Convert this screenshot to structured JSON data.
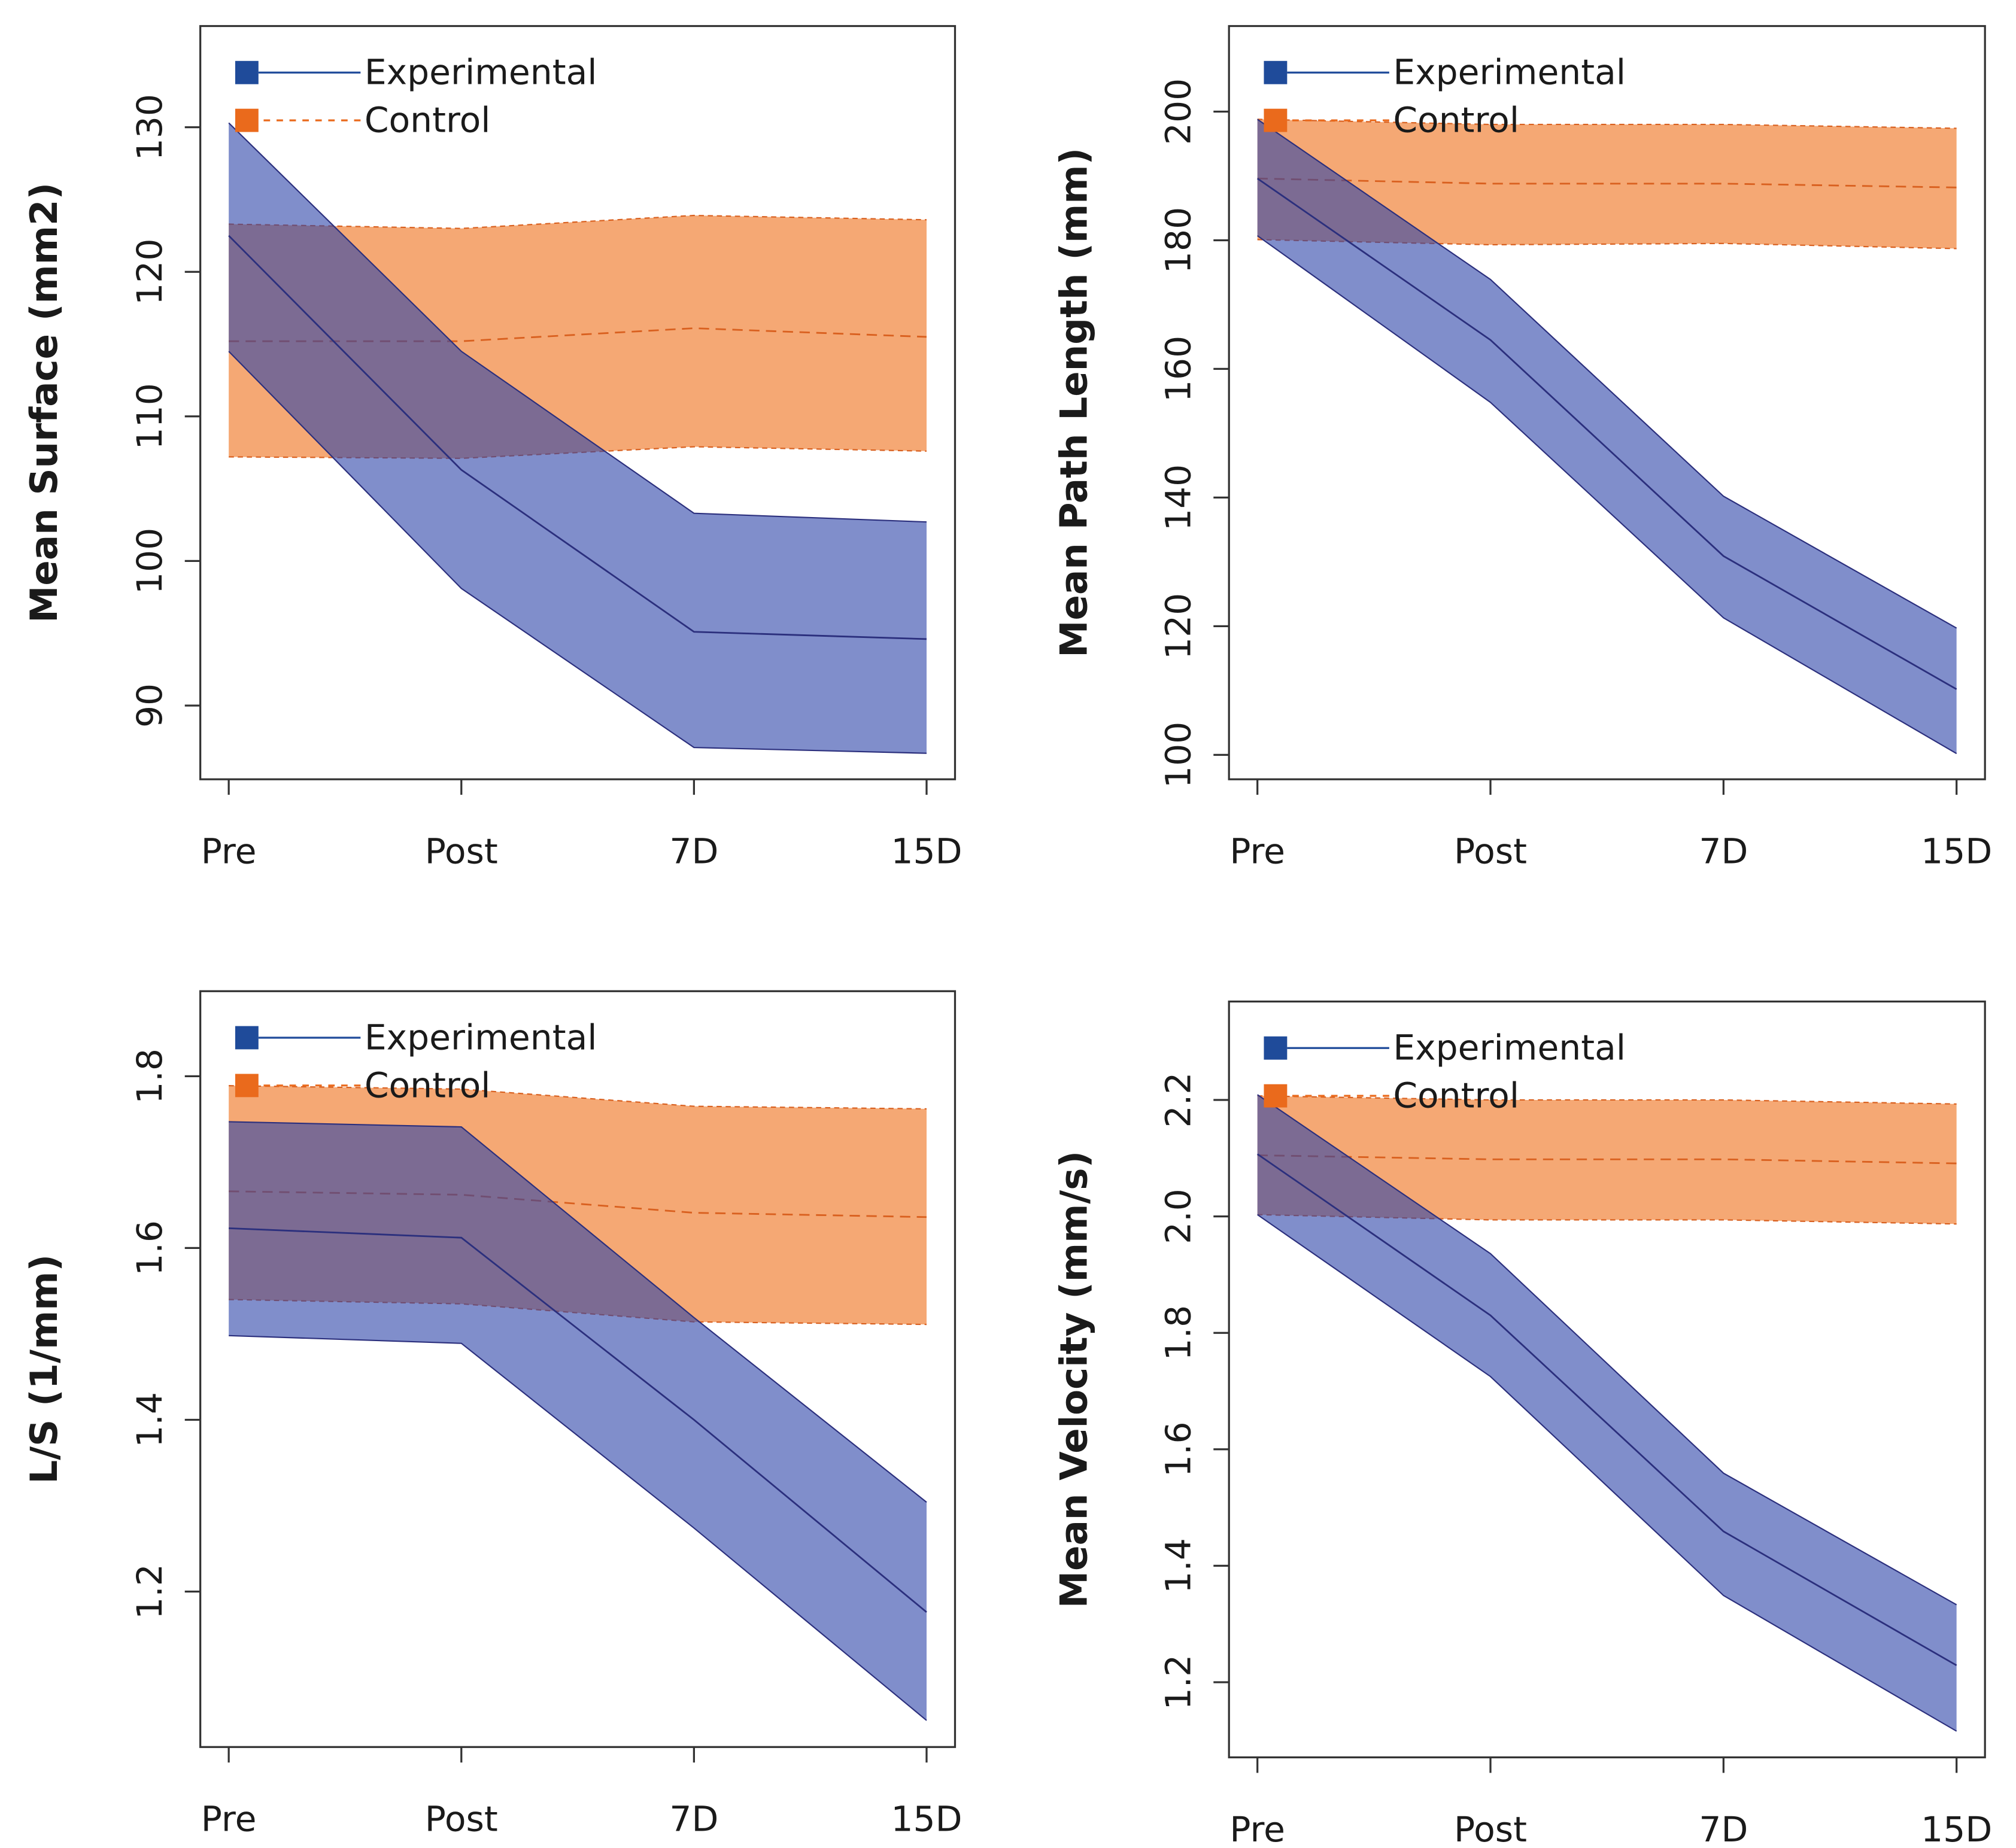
{
  "chart_data": [
    {
      "type": "line",
      "ylabel": "Mean Surface (mm2)",
      "categories": [
        "Pre",
        "Post",
        "7D",
        "15D"
      ],
      "yticks": [
        90,
        100,
        110,
        120,
        130
      ],
      "ylim": [
        84.9,
        137
      ],
      "legend": {
        "position": "top-left",
        "entries": [
          "Experimental",
          "Control"
        ]
      },
      "series": [
        {
          "name": "Experimental",
          "mean": [
            122.5,
            106.3,
            95.1,
            94.6
          ],
          "upper": [
            130.3,
            114.5,
            103.3,
            102.7
          ],
          "lower": [
            114.5,
            98.1,
            87.1,
            86.7
          ]
        },
        {
          "name": "Control",
          "mean": [
            115.2,
            115.2,
            116.1,
            115.5
          ],
          "upper": [
            123.3,
            123.0,
            123.9,
            123.6
          ],
          "lower": [
            107.2,
            107.1,
            107.9,
            107.6
          ]
        }
      ]
    },
    {
      "type": "line",
      "ylabel": "Mean Path Length (mm)",
      "categories": [
        "Pre",
        "Post",
        "7D",
        "15D"
      ],
      "yticks": [
        100,
        120,
        140,
        160,
        180,
        200
      ],
      "ylim": [
        96.2,
        213.3
      ],
      "legend": {
        "position": "top-left",
        "entries": [
          "Experimental",
          "Control"
        ]
      },
      "series": [
        {
          "name": "Experimental",
          "mean": [
            189.6,
            164.5,
            130.9,
            110.2
          ],
          "upper": [
            198.8,
            173.9,
            140.2,
            119.7
          ],
          "lower": [
            180.7,
            154.8,
            121.3,
            100.2
          ]
        },
        {
          "name": "Control",
          "mean": [
            189.6,
            188.8,
            188.8,
            188.2
          ],
          "upper": [
            198.8,
            198.0,
            198.0,
            197.4
          ],
          "lower": [
            180.1,
            179.3,
            179.5,
            178.7
          ]
        }
      ]
    },
    {
      "type": "line",
      "ylabel": "L/S (1/mm)",
      "categories": [
        "Pre",
        "Post",
        "7D",
        "15D"
      ],
      "yticks": [
        "1.2",
        "1.4",
        "1.6",
        "1.8"
      ],
      "ylim": [
        1.019,
        1.899
      ],
      "legend": {
        "position": "top-left",
        "entries": [
          "Experimental",
          "Control"
        ]
      },
      "series": [
        {
          "name": "Experimental",
          "mean": [
            1.623,
            1.612,
            1.4,
            1.176
          ],
          "upper": [
            1.747,
            1.741,
            1.519,
            1.304
          ],
          "lower": [
            1.498,
            1.489,
            1.274,
            1.05
          ]
        },
        {
          "name": "Control",
          "mean": [
            1.666,
            1.662,
            1.641,
            1.636
          ],
          "upper": [
            1.789,
            1.785,
            1.765,
            1.762
          ],
          "lower": [
            1.54,
            1.535,
            1.514,
            1.511
          ]
        }
      ]
    },
    {
      "type": "line",
      "ylabel": "Mean Velocity (mm/s)",
      "categories": [
        "Pre",
        "Post",
        "7D",
        "15D"
      ],
      "yticks": [
        "1.2",
        "1.4",
        "1.6",
        "1.8",
        "2.0",
        "2.2"
      ],
      "ylim": [
        1.071,
        2.369
      ],
      "legend": {
        "position": "top-left",
        "entries": [
          "Experimental",
          "Control"
        ]
      },
      "series": [
        {
          "name": "Experimental",
          "mean": [
            2.107,
            1.83,
            1.459,
            1.229
          ],
          "upper": [
            2.209,
            1.936,
            1.559,
            1.333
          ],
          "lower": [
            2.003,
            1.725,
            1.349,
            1.116
          ]
        },
        {
          "name": "Control",
          "mean": [
            2.105,
            2.098,
            2.098,
            2.091
          ],
          "upper": [
            2.207,
            2.2,
            2.2,
            2.193
          ],
          "lower": [
            2.003,
            1.994,
            1.994,
            1.987
          ]
        }
      ]
    }
  ],
  "colors": {
    "experimental_fill": "rgba(44,66,168,0.6)",
    "experimental_line": "#2b2f7d",
    "experimental_marker": "#1f4b9a",
    "control_fill": "#f5a874",
    "control_line": "#d9601f",
    "control_marker": "#ea6a1c"
  }
}
